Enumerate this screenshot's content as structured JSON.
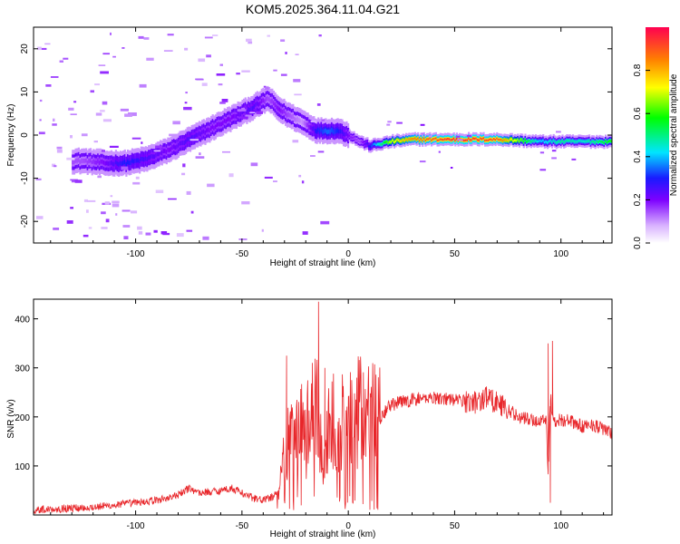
{
  "chart_data": [
    {
      "type": "heatmap",
      "title": "KOM5.2025.364.11.04.G21",
      "xlabel": "Height of straight line (km)",
      "ylabel": "Frequency (Hz)",
      "xlim": [
        -148,
        124
      ],
      "ylim": [
        -25,
        25
      ],
      "xticks": [
        -100,
        -50,
        0,
        50,
        100
      ],
      "yticks": [
        -20,
        -10,
        0,
        10,
        20
      ],
      "colorbar": {
        "label": "Normalized spectral amplitude",
        "range": [
          0,
          1
        ],
        "ticks": [
          "0.0",
          "0.2",
          "0.4",
          "0.6",
          "0.8"
        ],
        "tick_values": [
          0,
          0.2,
          0.4,
          0.6,
          0.8
        ]
      },
      "ridge": {
        "x": [
          -125,
          -115,
          -105,
          -95,
          -85,
          -75,
          -65,
          -55,
          -45,
          -38,
          -33,
          -28,
          -22,
          -15,
          -10,
          -5,
          0,
          5,
          10,
          20,
          30,
          50,
          70,
          90,
          100,
          110,
          124
        ],
        "freq": [
          -6,
          -6.5,
          -6.5,
          -5.5,
          -3.5,
          -1,
          1.5,
          4,
          6.5,
          8.5,
          6,
          4.5,
          3,
          1,
          1,
          1,
          0,
          -1.5,
          -2.5,
          -1.5,
          -1,
          -1,
          -1,
          -1.5,
          -1.5,
          -1.5,
          -1.5
        ],
        "peak_amplitude": [
          0.15,
          0.2,
          0.3,
          0.25,
          0.2,
          0.25,
          0.2,
          0.2,
          0.25,
          0.15,
          0.2,
          0.15,
          0.1,
          0.3,
          0.35,
          0.3,
          0.2,
          0.15,
          0.3,
          0.7,
          0.85,
          0.95,
          0.9,
          0.4,
          0.5,
          0.45,
          0.6
        ]
      }
    },
    {
      "type": "line",
      "xlabel": "Height of straight line (km)",
      "ylabel": "SNR (v/v)",
      "xlim": [
        -148,
        124
      ],
      "ylim": [
        0,
        440
      ],
      "xticks": [
        -100,
        -50,
        0,
        50,
        100
      ],
      "yticks": [
        100,
        200,
        300,
        400
      ],
      "series": [
        {
          "name": "SNR",
          "color": "#e8262a",
          "x": [
            -148,
            -140,
            -130,
            -120,
            -110,
            -100,
            -90,
            -80,
            -75,
            -70,
            -60,
            -55,
            -50,
            -45,
            -40,
            -35,
            -32,
            -30,
            -28,
            -25,
            -22,
            -20,
            -18,
            -16,
            -15,
            -14,
            -12,
            -10,
            -8,
            -5,
            -2,
            0,
            3,
            5,
            8,
            10,
            15,
            20,
            25,
            30,
            40,
            50,
            60,
            65,
            70,
            75,
            80,
            85,
            90,
            93,
            94,
            95,
            96,
            97,
            100,
            105,
            110,
            115,
            120,
            124
          ],
          "y": [
            10,
            12,
            14,
            16,
            20,
            25,
            30,
            40,
            55,
            45,
            50,
            55,
            45,
            35,
            30,
            38,
            60,
            120,
            160,
            150,
            200,
            140,
            230,
            180,
            260,
            160,
            110,
            150,
            210,
            160,
            200,
            205,
            190,
            215,
            195,
            210,
            200,
            225,
            230,
            235,
            240,
            235,
            230,
            240,
            230,
            215,
            200,
            195,
            190,
            200,
            80,
            250,
            200,
            190,
            195,
            190,
            180,
            185,
            175,
            165
          ]
        }
      ],
      "spikes": [
        {
          "x": -29,
          "y": 325
        },
        {
          "x": -14,
          "y": 435
        },
        {
          "x": -11,
          "y": 300
        },
        {
          "x": 4,
          "y": 280
        },
        {
          "x": 65,
          "y": 262
        },
        {
          "x": 94,
          "y": 350
        },
        {
          "x": 96,
          "y": 355
        },
        {
          "x": 95,
          "y": 25
        }
      ]
    }
  ]
}
